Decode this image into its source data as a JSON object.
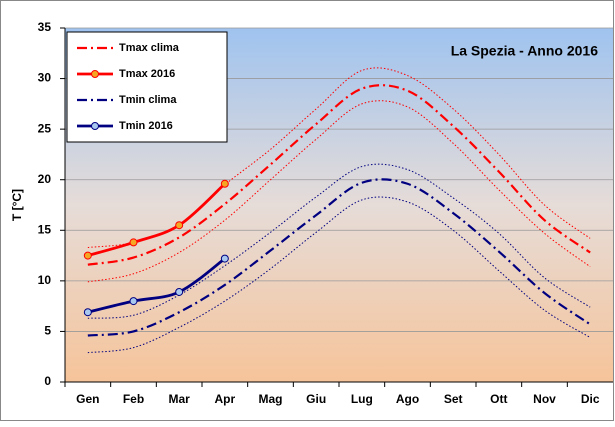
{
  "chart_data": {
    "type": "line",
    "title": "La Spezia - Anno 2016",
    "y_label": "T [°C]",
    "categories": [
      "Gen",
      "Feb",
      "Mar",
      "Apr",
      "Mag",
      "Giu",
      "Lug",
      "Ago",
      "Set",
      "Ott",
      "Nov",
      "Dic"
    ],
    "ylim": [
      0,
      35
    ],
    "yticks": [
      0,
      5,
      10,
      15,
      20,
      25,
      30,
      35
    ],
    "grid": true,
    "legend": "top-left",
    "series": [
      {
        "color": "#ff0000",
        "style": "dotted",
        "values": [
          13.3,
          13.8,
          15.6,
          19.5,
          23.0,
          27.0,
          30.8,
          30.3,
          27.0,
          22.5,
          17.5,
          14.2
        ]
      },
      {
        "color": "#ff0000",
        "style": "dotted",
        "values": [
          9.9,
          10.7,
          12.8,
          16.0,
          20.0,
          24.0,
          27.5,
          27.2,
          23.6,
          19.0,
          14.7,
          11.4
        ]
      },
      {
        "color": "#000080",
        "style": "dotted",
        "values": [
          6.3,
          6.6,
          8.6,
          11.5,
          14.8,
          18.3,
          21.3,
          21.0,
          18.2,
          14.7,
          10.3,
          7.4
        ]
      },
      {
        "color": "#000080",
        "style": "dotted",
        "values": [
          2.9,
          3.4,
          5.4,
          8.0,
          11.2,
          14.8,
          18.0,
          17.8,
          15.0,
          11.0,
          7.1,
          4.4
        ]
      },
      {
        "name": "Tmax clima",
        "color": "#ff0000",
        "style": "dashdot",
        "values": [
          11.6,
          12.3,
          14.3,
          17.6,
          21.5,
          25.5,
          29.0,
          28.8,
          25.3,
          20.8,
          16.0,
          12.8
        ]
      },
      {
        "name": "Tmax 2016",
        "color": "#ff0000",
        "style": "solid",
        "marker_color": "#f5a623",
        "values": [
          12.5,
          13.8,
          15.5,
          19.6,
          null,
          null,
          null,
          null,
          null,
          null,
          null,
          null
        ]
      },
      {
        "name": "Tmin clima",
        "color": "#000080",
        "style": "dashdot",
        "values": [
          4.6,
          5.0,
          6.9,
          9.6,
          13.0,
          16.5,
          19.7,
          19.6,
          16.7,
          12.9,
          8.8,
          5.7
        ]
      },
      {
        "name": "Tmin 2016",
        "color": "#000080",
        "style": "solid",
        "marker_color": "#a8c8f0",
        "values": [
          6.9,
          8.0,
          8.9,
          12.2,
          null,
          null,
          null,
          null,
          null,
          null,
          null,
          null
        ]
      }
    ]
  }
}
